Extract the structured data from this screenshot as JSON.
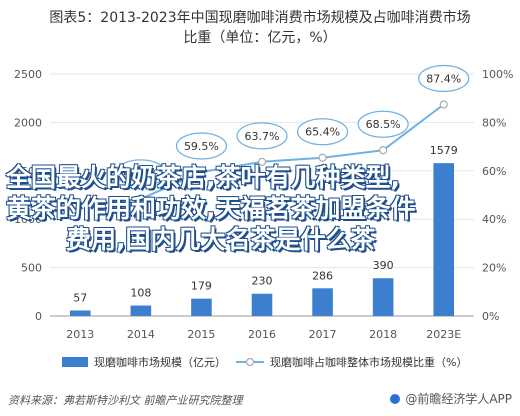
{
  "title_line1": "图表5：2013-2023年中国现磨咖啡消费市场规模及占咖啡消费市场",
  "title_line2": "比重（单位：亿元，%）",
  "chart_data": {
    "type": "bar",
    "categories": [
      "2013",
      "2014",
      "2015",
      "2016",
      "2017",
      "2018",
      "2023E"
    ],
    "series": [
      {
        "name": "现磨咖啡市场规模（亿元）",
        "type": "bar",
        "axis": "left",
        "color": "#3d7fcf",
        "values": [
          57,
          108,
          179,
          230,
          286,
          390,
          1579
        ]
      },
      {
        "name": "现磨咖啡占咖啡整体市场规模比重（%）",
        "type": "line",
        "axis": "right",
        "color": "#6fb1e0",
        "values": [
          null,
          48.4,
          59.5,
          63.7,
          65.4,
          68.5,
          87.4
        ],
        "labels": [
          "",
          "48.4%",
          "59.5%",
          "63.7%",
          "65.4%",
          "68.5%",
          "87.4%"
        ]
      }
    ],
    "ylim_left": [
      0,
      2500
    ],
    "yticks_left": [
      "0",
      "500",
      "1000",
      "1500",
      "2000",
      "2500"
    ],
    "ylim_right": [
      0,
      100
    ],
    "yticks_right": [
      "0%",
      "20%",
      "40%",
      "60%",
      "80%",
      "100%"
    ],
    "grid": true,
    "legend_position": "bottom"
  },
  "overlay_text": [
    "全国最火的奶茶店,茶叶有几种类型,",
    "黄茶的作用和功效,天福茗茶加盟条件",
    "费用,国内几大名茶是什么茶"
  ],
  "footer": {
    "source": "资料来源：弗若斯特沙利文 前瞻产业研究院整理",
    "brand": "@前瞻经济学人APP"
  },
  "colors": {
    "bar": "#3d7fcf",
    "line": "#6fb1e0",
    "axis_text": "#555555",
    "grid": "#e6e6e6"
  }
}
